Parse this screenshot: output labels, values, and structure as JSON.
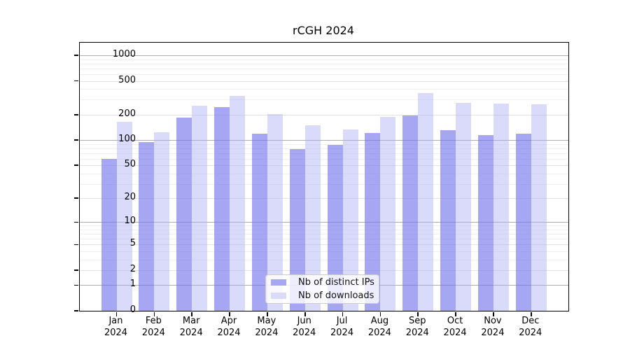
{
  "window": {
    "title": "rCGH 2024"
  },
  "chart_data": {
    "type": "bar",
    "title": "rCGH 2024",
    "categories": [
      "Jan",
      "Feb",
      "Mar",
      "Apr",
      "May",
      "Jun",
      "Jul",
      "Aug",
      "Sep",
      "Oct",
      "Nov",
      "Dec"
    ],
    "year": "2024",
    "series": [
      {
        "name": "Nb of distinct IPs",
        "color": "rgba(111,111,236,0.62)",
        "color_solid": "#a6a6f3",
        "values": [
          60,
          94,
          186,
          246,
          119,
          78,
          88,
          121,
          195,
          131,
          114,
          119
        ]
      },
      {
        "name": "Nb of downloads",
        "color": "rgba(173,173,244,0.45)",
        "color_solid": "#dadaf9",
        "values": [
          165,
          123,
          257,
          336,
          205,
          149,
          133,
          190,
          358,
          277,
          271,
          267
        ]
      }
    ],
    "xlabel": "",
    "ylabel": "",
    "y_scale": "log1p",
    "ylim": [
      0,
      1000
    ],
    "y_ticks": [
      0,
      1,
      2,
      5,
      10,
      20,
      50,
      100,
      200,
      500,
      1000
    ],
    "y_minor_ticks": [
      3,
      4,
      6,
      7,
      8,
      9,
      30,
      40,
      60,
      70,
      80,
      90,
      300,
      400,
      600,
      700,
      800,
      900
    ],
    "grid": "horizontal",
    "legend_position": "lower center"
  }
}
